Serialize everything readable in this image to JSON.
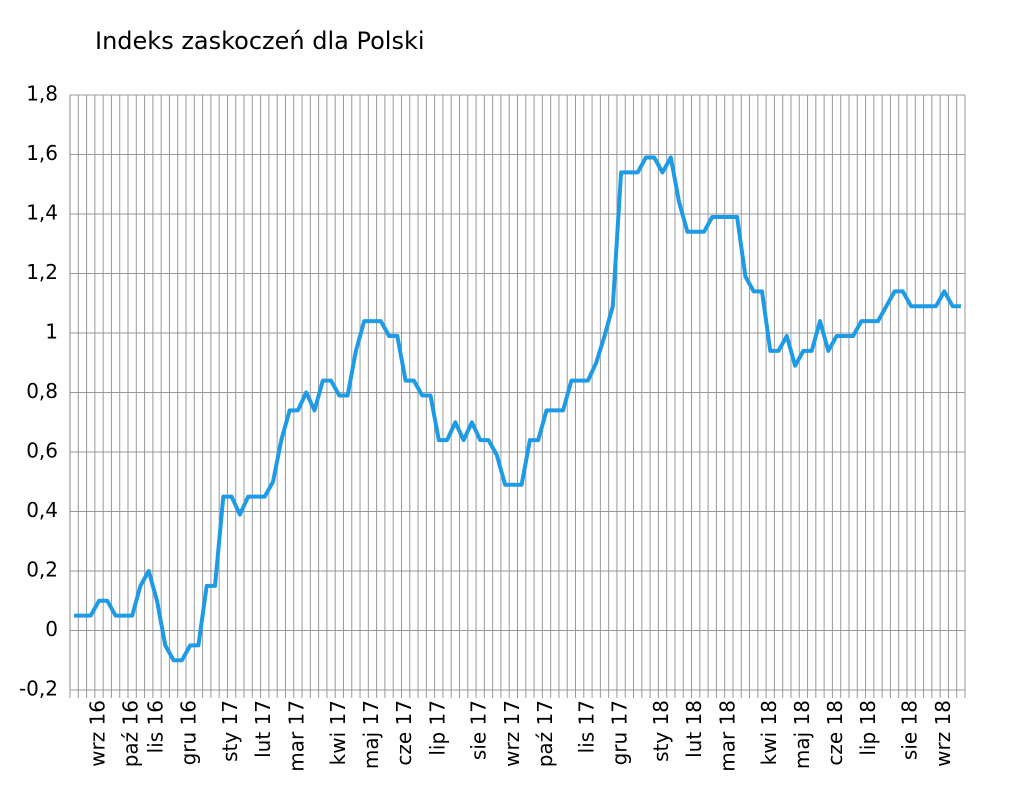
{
  "chart_data": {
    "type": "line",
    "title": "Indeks zaskoczeń dla Polski",
    "categories": [
      null,
      null,
      null,
      "wrz 16",
      null,
      null,
      null,
      "paź 16",
      null,
      null,
      "lis 16",
      null,
      null,
      null,
      "gru 16",
      null,
      null,
      null,
      null,
      "sty 17",
      null,
      null,
      null,
      "lut 17",
      null,
      null,
      null,
      "mar 17",
      null,
      null,
      null,
      null,
      "kwi 17",
      null,
      null,
      null,
      "maj 17",
      null,
      null,
      null,
      "cze 17",
      null,
      null,
      null,
      "lip 17",
      null,
      null,
      null,
      null,
      "sie 17",
      null,
      null,
      null,
      "wrz 17",
      null,
      null,
      null,
      "paź 17",
      null,
      null,
      null,
      null,
      "lis 17",
      null,
      null,
      null,
      "gru 17",
      null,
      null,
      null,
      null,
      "sty 18",
      null,
      null,
      null,
      "lut 18",
      null,
      null,
      null,
      "mar 18",
      null,
      null,
      null,
      null,
      "kwi 18",
      null,
      null,
      null,
      "maj 18",
      null,
      null,
      null,
      "cze 18",
      null,
      null,
      null,
      "lip 18",
      null,
      null,
      null,
      null,
      "sie 18",
      null,
      null,
      null,
      "wrz 18",
      null,
      null
    ],
    "series": [
      {
        "color": "#1e9be6",
        "values": [
          0.05,
          0.05,
          0.05,
          0.1,
          0.1,
          0.05,
          0.05,
          0.05,
          0.15,
          0.2,
          0.1,
          -0.05,
          -0.1,
          -0.1,
          -0.05,
          -0.05,
          0.15,
          0.15,
          0.45,
          0.45,
          0.39,
          0.45,
          0.45,
          0.45,
          0.5,
          0.64,
          0.74,
          0.74,
          0.8,
          0.74,
          0.84,
          0.84,
          0.79,
          0.79,
          0.94,
          1.04,
          1.04,
          1.04,
          0.99,
          0.99,
          0.84,
          0.84,
          0.79,
          0.79,
          0.64,
          0.64,
          0.7,
          0.64,
          0.7,
          0.64,
          0.64,
          0.59,
          0.49,
          0.49,
          0.49,
          0.64,
          0.64,
          0.74,
          0.74,
          0.74,
          0.84,
          0.84,
          0.84,
          0.9,
          0.99,
          1.09,
          1.54,
          1.54,
          1.54,
          1.59,
          1.59,
          1.54,
          1.59,
          1.44,
          1.34,
          1.34,
          1.34,
          1.39,
          1.39,
          1.39,
          1.39,
          1.19,
          1.14,
          1.14,
          0.94,
          0.94,
          0.99,
          0.89,
          0.94,
          0.94,
          1.04,
          0.94,
          0.99,
          0.99,
          0.99,
          1.04,
          1.04,
          1.04,
          1.09,
          1.14,
          1.14,
          1.09,
          1.09,
          1.09,
          1.09,
          1.14,
          1.09,
          1.09
        ]
      }
    ],
    "ylim": [
      -0.2,
      1.8
    ],
    "yticks": [
      {
        "value": -0.2,
        "label": "-0,2"
      },
      0,
      {
        "value": 0.2,
        "label": "0,2"
      },
      {
        "value": 0.4,
        "label": "0,4"
      },
      {
        "value": 0.6,
        "label": "0,6"
      },
      {
        "value": 0.8,
        "label": "0,8"
      },
      1,
      {
        "value": 1.2,
        "label": "1,2"
      },
      {
        "value": 1.4,
        "label": "1,4"
      },
      {
        "value": 1.6,
        "label": "1,6"
      },
      {
        "value": 1.8,
        "label": "1,8"
      }
    ],
    "grid": true
  }
}
